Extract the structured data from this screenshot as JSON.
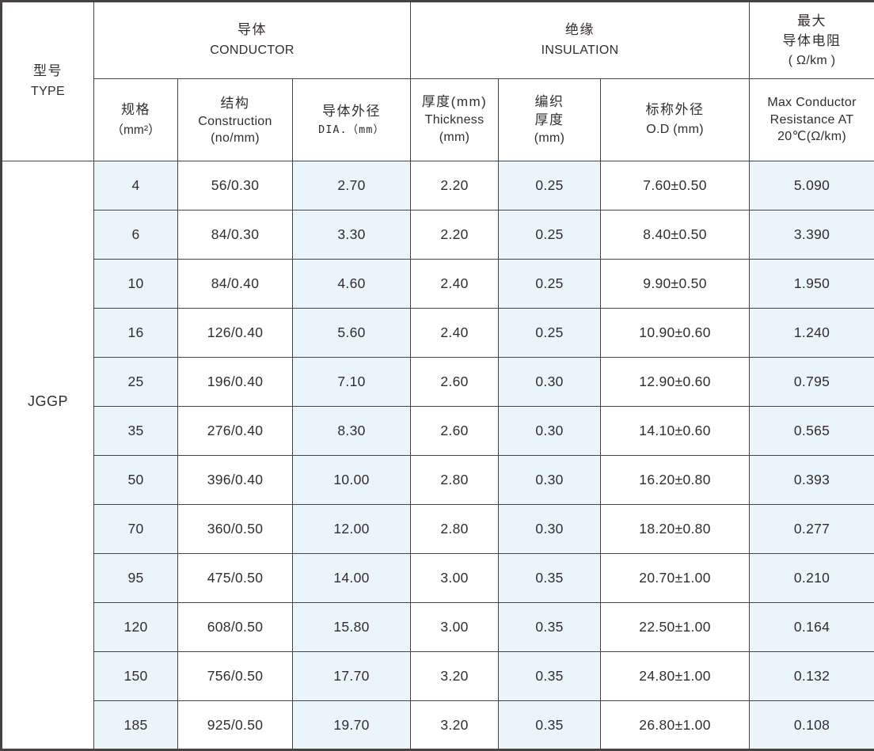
{
  "colors": {
    "tint": "#e9f4fb",
    "border": "#474243",
    "text": "#332d2e",
    "background": "#ffffff"
  },
  "table": {
    "type_header": {
      "zh": "型号",
      "en": "TYPE"
    },
    "type_value": "JGGP",
    "group_headers": {
      "conductor": {
        "zh": "导体",
        "en": "CONDUCTOR"
      },
      "insulation": {
        "zh": "绝缘",
        "en": "INSULATION"
      },
      "resistance": {
        "line1": "最大",
        "line2": "导体电阻",
        "line3": "( Ω/km )"
      }
    },
    "sub_headers": {
      "spec": {
        "line1": "规格",
        "line2": "（mm²）"
      },
      "construction": {
        "line1": "结构",
        "line2": "Construction",
        "line3": "(no/mm)"
      },
      "conductor_dia": {
        "line1": "导体外径",
        "line2": "DIA.（mm）"
      },
      "thickness": {
        "line1": "厚度(mm)",
        "line2": "Thickness",
        "line3": "(mm)"
      },
      "braid": {
        "line1": "编织",
        "line2": "厚度",
        "line3": "(mm)"
      },
      "od": {
        "line1": "标称外径",
        "line2": "O.D (mm)"
      },
      "resistance": {
        "line1": "Max Conductor",
        "line2": "Resistance  AT",
        "line3": "20℃(Ω/km)"
      }
    },
    "rows": [
      [
        "4",
        "56/0.30",
        "2.70",
        "2.20",
        "0.25",
        "7.60±0.50",
        "5.090"
      ],
      [
        "6",
        "84/0.30",
        "3.30",
        "2.20",
        "0.25",
        "8.40±0.50",
        "3.390"
      ],
      [
        "10",
        "84/0.40",
        "4.60",
        "2.40",
        "0.25",
        "9.90±0.50",
        "1.950"
      ],
      [
        "16",
        "126/0.40",
        "5.60",
        "2.40",
        "0.25",
        "10.90±0.60",
        "1.240"
      ],
      [
        "25",
        "196/0.40",
        "7.10",
        "2.60",
        "0.30",
        "12.90±0.60",
        "0.795"
      ],
      [
        "35",
        "276/0.40",
        "8.30",
        "2.60",
        "0.30",
        "14.10±0.60",
        "0.565"
      ],
      [
        "50",
        "396/0.40",
        "10.00",
        "2.80",
        "0.30",
        "16.20±0.80",
        "0.393"
      ],
      [
        "70",
        "360/0.50",
        "12.00",
        "2.80",
        "0.30",
        "18.20±0.80",
        "0.277"
      ],
      [
        "95",
        "475/0.50",
        "14.00",
        "3.00",
        "0.35",
        "20.70±1.00",
        "0.210"
      ],
      [
        "120",
        "608/0.50",
        "15.80",
        "3.00",
        "0.35",
        "22.50±1.00",
        "0.164"
      ],
      [
        "150",
        "756/0.50",
        "17.70",
        "3.20",
        "0.35",
        "24.80±1.00",
        "0.132"
      ],
      [
        "185",
        "925/0.50",
        "19.70",
        "3.20",
        "0.35",
        "26.80±1.00",
        "0.108"
      ]
    ]
  }
}
